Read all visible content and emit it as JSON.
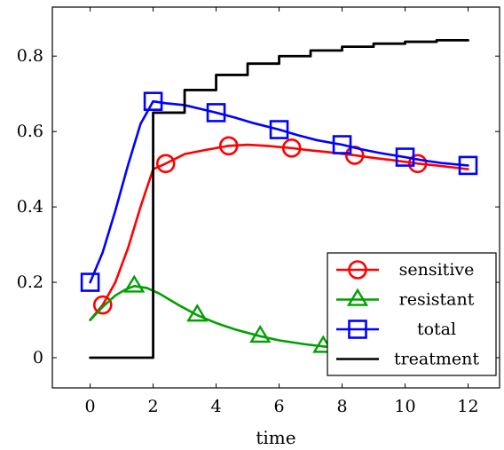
{
  "chart_data": {
    "type": "line",
    "title": "",
    "xlabel": "time",
    "ylabel": "",
    "xlim": [
      -1.2,
      13
    ],
    "ylim": [
      -0.08,
      0.93
    ],
    "xticks": [
      0,
      2,
      4,
      6,
      8,
      10,
      12
    ],
    "yticks": [
      0,
      0.2,
      0.4,
      0.6,
      0.8
    ],
    "xtick_labels": [
      "0",
      "2",
      "4",
      "6",
      "8",
      "10",
      "12"
    ],
    "ytick_labels": [
      "0",
      "0.2",
      "0.4",
      "0.6",
      "0.8"
    ],
    "grid": false,
    "legend_position": "bottom-right",
    "series": [
      {
        "name": "sensitive",
        "color": "#ff0000",
        "marker": "circle",
        "x": [
          0,
          0.4,
          0.8,
          1.2,
          1.6,
          2.0,
          2.4,
          3.0,
          3.6,
          4.4,
          5.0,
          5.6,
          6.4,
          7.0,
          7.6,
          8.4,
          9.0,
          9.6,
          10.4,
          11.0,
          12.0
        ],
        "y": [
          0.1,
          0.14,
          0.2,
          0.29,
          0.4,
          0.5,
          0.515,
          0.54,
          0.55,
          0.562,
          0.565,
          0.562,
          0.556,
          0.55,
          0.545,
          0.537,
          0.53,
          0.524,
          0.515,
          0.51,
          0.5
        ],
        "marker_x": [
          0.4,
          2.4,
          4.4,
          6.4,
          8.4,
          10.4
        ],
        "marker_y": [
          0.14,
          0.515,
          0.562,
          0.556,
          0.537,
          0.515
        ]
      },
      {
        "name": "resistant",
        "color": "#00a000",
        "marker": "triangle",
        "x": [
          0,
          0.4,
          0.8,
          1.1,
          1.4,
          1.8,
          2.2,
          2.8,
          3.4,
          4.0,
          4.6,
          5.4,
          6.0,
          6.8,
          7.4,
          7.8
        ],
        "y": [
          0.1,
          0.135,
          0.165,
          0.18,
          0.19,
          0.185,
          0.17,
          0.14,
          0.113,
          0.092,
          0.075,
          0.057,
          0.046,
          0.036,
          0.03,
          0.027
        ],
        "marker_x": [
          1.4,
          3.4,
          5.4,
          7.4
        ],
        "marker_y": [
          0.19,
          0.113,
          0.057,
          0.03
        ]
      },
      {
        "name": "total",
        "color": "#0000ff",
        "marker": "square",
        "x": [
          0,
          0.4,
          0.8,
          1.2,
          1.6,
          2.0,
          2.4,
          3.0,
          3.6,
          4.0,
          4.6,
          5.2,
          6.0,
          6.6,
          7.2,
          8.0,
          8.6,
          9.2,
          10.0,
          10.6,
          11.2,
          12.0
        ],
        "y": [
          0.2,
          0.28,
          0.39,
          0.51,
          0.62,
          0.68,
          0.675,
          0.67,
          0.658,
          0.65,
          0.637,
          0.622,
          0.605,
          0.59,
          0.577,
          0.565,
          0.553,
          0.543,
          0.532,
          0.523,
          0.516,
          0.51
        ],
        "marker_x": [
          0,
          2,
          4,
          6,
          8,
          10,
          12
        ],
        "marker_y": [
          0.2,
          0.68,
          0.65,
          0.605,
          0.565,
          0.532,
          0.51
        ]
      },
      {
        "name": "treatment",
        "color": "#000000",
        "marker": "none",
        "step": true,
        "x": [
          0,
          2.0,
          2.0,
          3.0,
          3.0,
          4.0,
          4.0,
          5.0,
          5.0,
          6.0,
          6.0,
          7.0,
          7.0,
          8.0,
          8.0,
          9.0,
          9.0,
          10.0,
          10.0,
          11.0,
          11.0,
          12.0
        ],
        "y": [
          0,
          0,
          0.65,
          0.65,
          0.71,
          0.71,
          0.75,
          0.75,
          0.78,
          0.78,
          0.8,
          0.8,
          0.815,
          0.815,
          0.825,
          0.825,
          0.833,
          0.833,
          0.838,
          0.838,
          0.842,
          0.842
        ]
      }
    ]
  }
}
